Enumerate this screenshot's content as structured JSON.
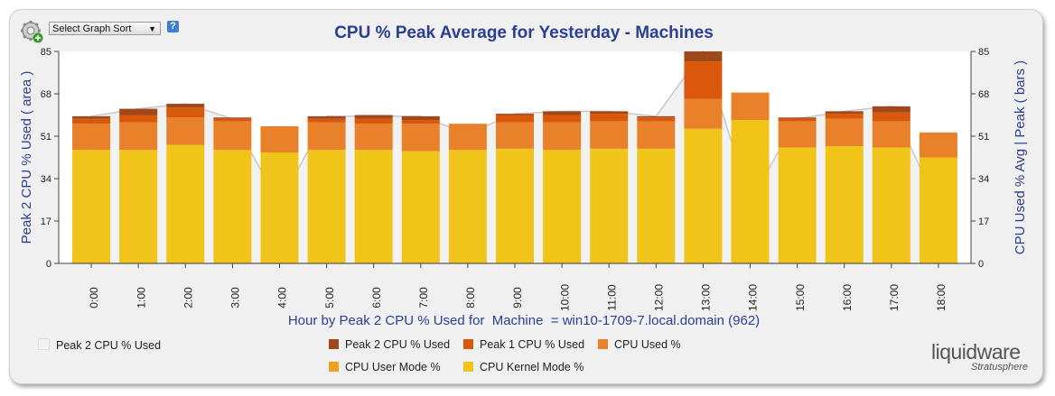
{
  "controls": {
    "graph_sort_label": "Select Graph Sort",
    "help_label": "?",
    "settings_icon": "gear-add-icon"
  },
  "chart_data": {
    "type": "bar",
    "stacked": true,
    "title": "CPU % Peak Average for Yesterday - Machines",
    "xlabel": "Hour by Peak 2 CPU % Used for  Machine  = win10-1709-7.local.domain (962)",
    "ylabel_left": "Peak 2 CPU % Used    ( area )",
    "ylabel_right": "CPU Used % Avg | Peak   ( bars )",
    "ylim": [
      0,
      85
    ],
    "yticks": [
      "0",
      "17",
      "34",
      "51",
      "68",
      "85"
    ],
    "categories": [
      "0:00",
      "1:00",
      "2:00",
      "3:00",
      "4:00",
      "5:00",
      "6:00",
      "7:00",
      "8:00",
      "9:00",
      "10:00",
      "11:00",
      "12:00",
      "13:00",
      "14:00",
      "15:00",
      "16:00",
      "17:00",
      "18:00"
    ],
    "area_series": {
      "name": "Peak 2 CPU % Used",
      "color": "#f2f2f2",
      "values": [
        59,
        62,
        64,
        58,
        24,
        59,
        59,
        59,
        52,
        60,
        61,
        61,
        59,
        85,
        25,
        58,
        61,
        63,
        23
      ]
    },
    "series": [
      {
        "name": "CPU Kernel Mode %",
        "color": "#f0c419",
        "values": [
          45.5,
          45.5,
          47.5,
          45.5,
          44.5,
          45.5,
          45.5,
          45,
          45.5,
          46,
          45.5,
          46,
          46,
          54,
          57.5,
          46.5,
          47,
          46.5,
          42.5
        ]
      },
      {
        "name": "CPU User Mode %",
        "color": "#eea022",
        "values": [
          0,
          0,
          0,
          0,
          0,
          0,
          0,
          0,
          0,
          0,
          0,
          0,
          0,
          0,
          0,
          0,
          0,
          0,
          0
        ]
      },
      {
        "name": "CPU Used %",
        "color": "#e8812a",
        "values": [
          10.5,
          11,
          11,
          11.5,
          10.5,
          11,
          10.5,
          11,
          10.5,
          10.5,
          11,
          11,
          11,
          12,
          11,
          10.5,
          11,
          10.5,
          10
        ]
      },
      {
        "name": "Peak 1 CPU % Used",
        "color": "#d9580b",
        "values": [
          2,
          3,
          4,
          1,
          0,
          1.5,
          2,
          1.5,
          0,
          3,
          3,
          3,
          1.5,
          15,
          0,
          1,
          2,
          3.5,
          0
        ]
      },
      {
        "name": "Peak 2 CPU % Used",
        "color": "#a0471b",
        "values": [
          1,
          2.5,
          1.5,
          0.5,
          0,
          1,
          1.5,
          1.5,
          0,
          0.5,
          1.5,
          1,
          0.5,
          4,
          0,
          0.5,
          1,
          2.5,
          0
        ]
      }
    ],
    "grid": false,
    "legend_position": "bottom"
  },
  "legend": {
    "area": {
      "label": "Peak 2 CPU % Used",
      "color": "#f2f2f2"
    },
    "row1": [
      {
        "label": "Peak 2 CPU % Used",
        "color": "#a0471b"
      },
      {
        "label": "Peak 1 CPU % Used",
        "color": "#d9580b"
      },
      {
        "label": "CPU Used %",
        "color": "#e8812a"
      }
    ],
    "row2": [
      {
        "label": "CPU User Mode %",
        "color": "#eea022"
      },
      {
        "label": "CPU Kernel Mode %",
        "color": "#f0c419"
      }
    ]
  },
  "branding": {
    "logo_text": "liquidware",
    "product_text": "Stratusphere"
  }
}
